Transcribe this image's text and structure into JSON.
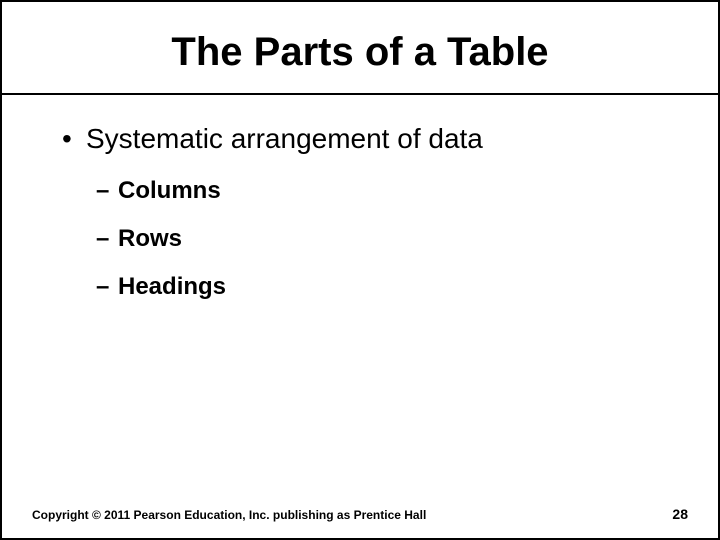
{
  "slide": {
    "title": "The Parts of a Table",
    "main_bullet": "Systematic arrangement of data",
    "sub_bullets": [
      "Columns",
      "Rows",
      "Headings"
    ],
    "copyright": "Copyright © 2011 Pearson Education, Inc. publishing as Prentice Hall",
    "page_number": "28"
  },
  "style": {
    "background_color": "#ffffff",
    "border_color": "#000000",
    "border_width": 2,
    "title_fontsize": 40,
    "title_fontweight": "bold",
    "title_color": "#000000",
    "main_bullet_fontsize": 28,
    "main_bullet_color": "#000000",
    "sub_bullet_fontsize": 24,
    "sub_bullet_fontweight": "bold",
    "sub_bullet_color": "#000000",
    "copyright_fontsize": 12,
    "copyright_fontweight": "bold",
    "page_number_fontsize": 14,
    "page_number_fontweight": "bold",
    "rule_color": "#000000",
    "rule_width": 2,
    "font_family": "Arial, Helvetica, sans-serif"
  }
}
